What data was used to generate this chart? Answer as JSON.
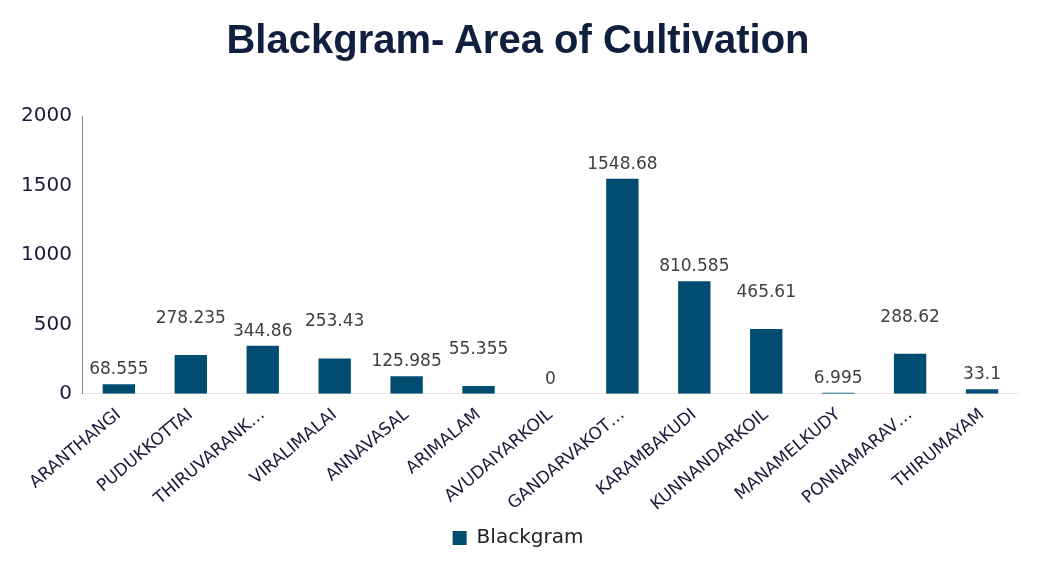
{
  "chart_data": {
    "type": "bar",
    "title": "Blackgram- Area of Cultivation",
    "categories": [
      "ARANTHANGI",
      "PUDUKKOTTAI",
      "THIRUVARANK…",
      "VIRALIMALAI",
      "ANNAVASAL",
      "ARIMALAM",
      "AVUDAIYARKOIL",
      "GANDARVAKOT…",
      "KARAMBAKUDI",
      "KUNNANDARKOIL",
      "MANAMELKUDY",
      "PONNAMARAV…",
      "THIRUMAYAM"
    ],
    "series": [
      {
        "name": "Blackgram",
        "color": "#004d71",
        "values": [
          68.555,
          278.235,
          344.86,
          253.43,
          125.985,
          55.355,
          0,
          1548.68,
          810.585,
          465.61,
          6.995,
          288.62,
          33.1
        ]
      }
    ],
    "ylim": [
      0,
      2000
    ],
    "yticks": [
      0,
      500,
      1000,
      1500,
      2000
    ],
    "grid": false,
    "legend": "bottom",
    "data_labels": true
  }
}
